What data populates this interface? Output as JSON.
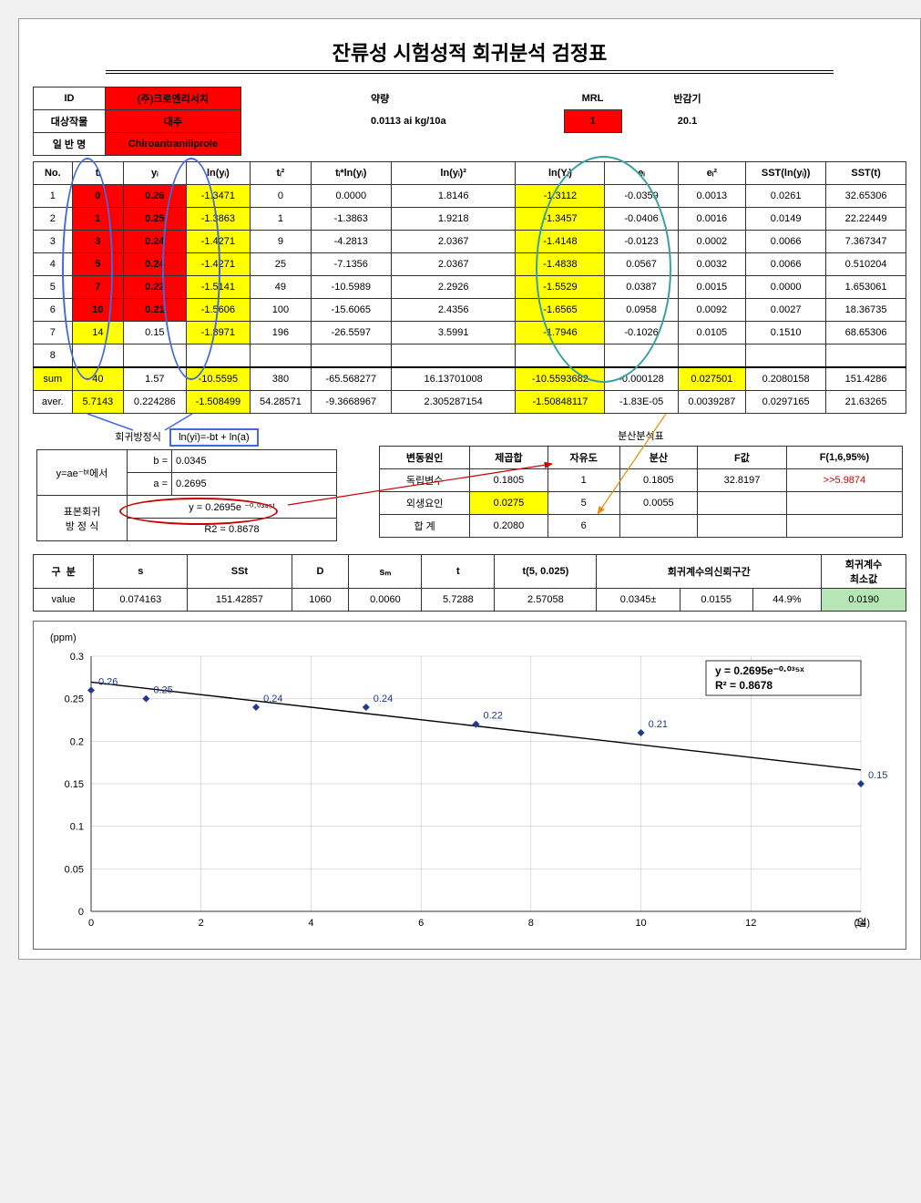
{
  "title": "잔류성 시험성적 회귀분석 검정표",
  "header": {
    "id_label": "ID",
    "id_value": "(주)크로엔리서치",
    "crop_label": "대상작물",
    "crop_value": "대추",
    "name_label": "일 반 명",
    "name_value": "Chlroantraniliprole",
    "dose_label": "약량",
    "dose_value": "0.0113 ai kg/10a",
    "mrl_label": "MRL",
    "mrl_value": "1",
    "half_label": "반감기",
    "half_value": "20.1"
  },
  "cols": [
    "No.",
    "tᵢ",
    "yᵢ",
    "ln(yᵢ)",
    "tᵢ²",
    "tᵢ*ln(yᵢ)",
    "ln(yᵢ)²",
    "ln(Yᵢ)",
    "eᵢ",
    "eᵢ²",
    "SST(ln(yᵢ))",
    "SST(t)"
  ],
  "rows": [
    [
      "1",
      "0",
      "0.26",
      "-1.3471",
      "0",
      "0.0000",
      "1.8146",
      "-1.3112",
      "-0.0359",
      "0.0013",
      "0.0261",
      "32.65306"
    ],
    [
      "2",
      "1",
      "0.25",
      "-1.3863",
      "1",
      "-1.3863",
      "1.9218",
      "-1.3457",
      "-0.0406",
      "0.0016",
      "0.0149",
      "22.22449"
    ],
    [
      "3",
      "3",
      "0.24",
      "-1.4271",
      "9",
      "-4.2813",
      "2.0367",
      "-1.4148",
      "-0.0123",
      "0.0002",
      "0.0066",
      "7.367347"
    ],
    [
      "4",
      "5",
      "0.24",
      "-1.4271",
      "25",
      "-7.1356",
      "2.0367",
      "-1.4838",
      "0.0567",
      "0.0032",
      "0.0066",
      "0.510204"
    ],
    [
      "5",
      "7",
      "0.22",
      "-1.5141",
      "49",
      "-10.5989",
      "2.2926",
      "-1.5529",
      "0.0387",
      "0.0015",
      "0.0000",
      "1.653061"
    ],
    [
      "6",
      "10",
      "0.21",
      "-1.5606",
      "100",
      "-15.6065",
      "2.4356",
      "-1.6565",
      "0.0958",
      "0.0092",
      "0.0027",
      "18.36735"
    ],
    [
      "7",
      "14",
      "0.15",
      "-1.8971",
      "196",
      "-26.5597",
      "3.5991",
      "-1.7946",
      "-0.1026",
      "0.0105",
      "0.1510",
      "68.65306"
    ],
    [
      "8",
      "",
      "",
      "",
      "",
      "",
      "",
      "",
      "",
      "",
      "",
      ""
    ]
  ],
  "sum": [
    "sum",
    "40",
    "1.57",
    "-10.5595",
    "380",
    "-65.568277",
    "16.13701008",
    "-10.5593682",
    "-0.000128",
    "0.027501",
    "0.2080158",
    "151.4286"
  ],
  "aver": [
    "aver.",
    "5.7143",
    "0.224286",
    "-1.508499",
    "54.28571",
    "-9.3668967",
    "2.305287154",
    "-1.50848117",
    "-1.83E-05",
    "0.0039287",
    "0.0297165",
    "21.63265"
  ],
  "reg": {
    "title": "회귀방정식",
    "formula": "ln(yi)=-bt + ln(a)",
    "model": "y=ae⁻ᵇᵗ에서",
    "b_label": "b =",
    "b_value": "0.0345",
    "a_label": "a =",
    "a_value": "0.2695",
    "eq_label": "표본회귀\n방 정 식",
    "eq_value": "y = 0.2695e ⁻⁰·⁰³⁴⁵ᵗ",
    "r2_label": "R2 =",
    "r2_value": "0.8678"
  },
  "anova": {
    "title": "분산분석표",
    "cols": [
      "변동원인",
      "제곱합",
      "자유도",
      "분산",
      "F값",
      "F(1,6,95%)"
    ],
    "rows": [
      [
        "독립변수",
        "0.1805",
        "1",
        "0.1805",
        "32.8197",
        ">>5.9874"
      ],
      [
        "외생요인",
        "0.0275",
        "5",
        "0.0055",
        "",
        ""
      ],
      [
        "합  계",
        "0.2080",
        "6",
        "",
        "",
        ""
      ]
    ]
  },
  "stats": {
    "cols": [
      "구  분",
      "s",
      "SSt",
      "D",
      "sₘ",
      "t",
      "t(5, 0.025)",
      "회귀계수의신뢰구간",
      "",
      "",
      "회귀계수\n최소값"
    ],
    "row": [
      "value",
      "0.074163",
      "151.42857",
      "1060",
      "0.0060",
      "5.7288",
      "2.57058",
      "0.0345±",
      "0.0155",
      "44.9%",
      "0.0190"
    ]
  },
  "chart": {
    "y_unit": "(ppm)",
    "x_unit": "(일)",
    "eq1": "y = 0.2695e⁻⁰·⁰³⁵ˣ",
    "eq2": "R² = 0.8678",
    "ylim": [
      0,
      0.3
    ],
    "ytick": [
      0,
      0.05,
      0.1,
      0.15,
      0.2,
      0.25,
      0.3
    ],
    "xlim": [
      0,
      14
    ],
    "xtick": [
      0,
      2,
      4,
      6,
      8,
      10,
      12,
      14
    ],
    "points": [
      {
        "x": 0,
        "y": 0.26,
        "l": "0.26"
      },
      {
        "x": 1,
        "y": 0.25,
        "l": "0.25"
      },
      {
        "x": 3,
        "y": 0.24,
        "l": "0.24"
      },
      {
        "x": 5,
        "y": 0.24,
        "l": "0.24"
      },
      {
        "x": 7,
        "y": 0.22,
        "l": "0.22"
      },
      {
        "x": 10,
        "y": 0.21,
        "l": "0.21"
      },
      {
        "x": 14,
        "y": 0.15,
        "l": "0.15"
      }
    ],
    "line_color": "#000",
    "marker_color": "#1f3a93",
    "grid_color": "#bfbfbf",
    "bg": "#ffffff"
  }
}
